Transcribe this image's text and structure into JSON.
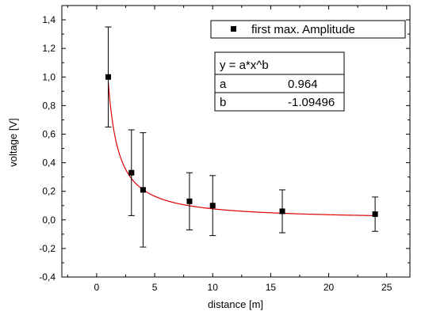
{
  "chart_data": {
    "type": "scatter",
    "xlabel": "distance [m]",
    "ylabel": "voltage [V]",
    "xlim": [
      -3,
      27
    ],
    "ylim": [
      -0.4,
      1.5
    ],
    "xticks": [
      0,
      5,
      10,
      15,
      20,
      25
    ],
    "xtick_labels": [
      "0",
      "5",
      "10",
      "15",
      "20",
      "25"
    ],
    "yticks": [
      -0.4,
      -0.2,
      0.0,
      0.2,
      0.4,
      0.6,
      0.8,
      1.0,
      1.2,
      1.4
    ],
    "ytick_labels": [
      "-0,4",
      "-0,2",
      "0,0",
      "0,2",
      "0,4",
      "0,6",
      "0,8",
      "1,0",
      "1,2",
      "1,4"
    ],
    "grid": false,
    "legend_position": "top-right",
    "series": [
      {
        "name": "first max. Amplitude",
        "color": "#000000",
        "marker": "square",
        "x": [
          1,
          3,
          4,
          8,
          10,
          16,
          24
        ],
        "y": [
          1.0,
          0.33,
          0.21,
          0.13,
          0.1,
          0.06,
          0.04
        ],
        "yerr": [
          0.35,
          0.3,
          0.4,
          0.2,
          0.21,
          0.15,
          0.12
        ]
      }
    ],
    "fit": {
      "color": "#e00000",
      "equation": "y = a*x^b",
      "params": [
        {
          "name": "a",
          "value": "0.964",
          "a_num": 0.964
        },
        {
          "name": "b",
          "value": "-1.09496",
          "b_num": -1.09496
        }
      ],
      "x_from": 1,
      "x_to": 24
    }
  }
}
